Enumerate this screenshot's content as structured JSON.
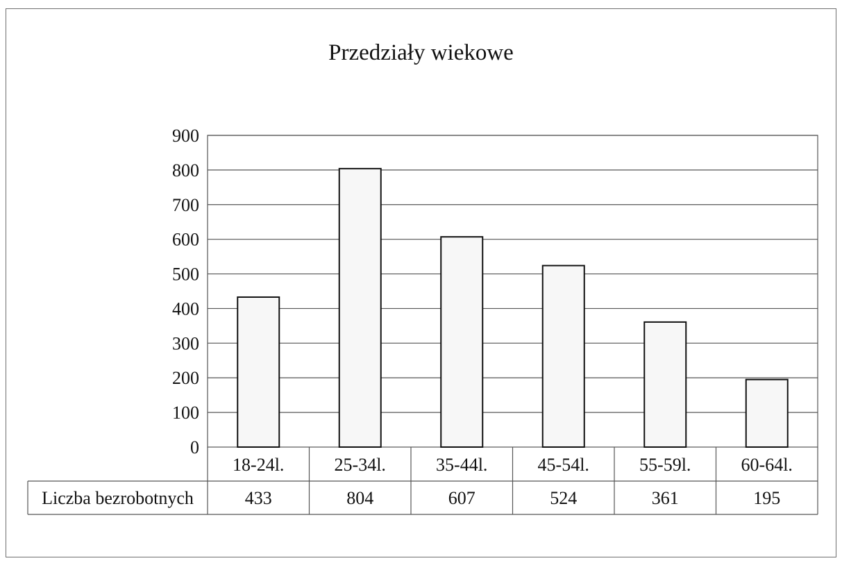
{
  "chart_data": {
    "type": "bar",
    "title": "Przedziały wiekowe",
    "categories": [
      "18-24l.",
      "25-34l.",
      "35-44l.",
      "45-54l.",
      "55-59l.",
      "60-64l."
    ],
    "series": [
      {
        "name": "Liczba bezrobotnych",
        "values": [
          433,
          804,
          607,
          524,
          361,
          195
        ]
      }
    ],
    "ylim": [
      0,
      900
    ],
    "yticks": [
      0,
      100,
      200,
      300,
      400,
      500,
      600,
      700,
      800,
      900
    ],
    "grid": true,
    "legend": "data-table",
    "colors": {
      "bar_fill": "#f7f7f7",
      "bar_stroke": "#111111",
      "grid": "#555555"
    }
  }
}
